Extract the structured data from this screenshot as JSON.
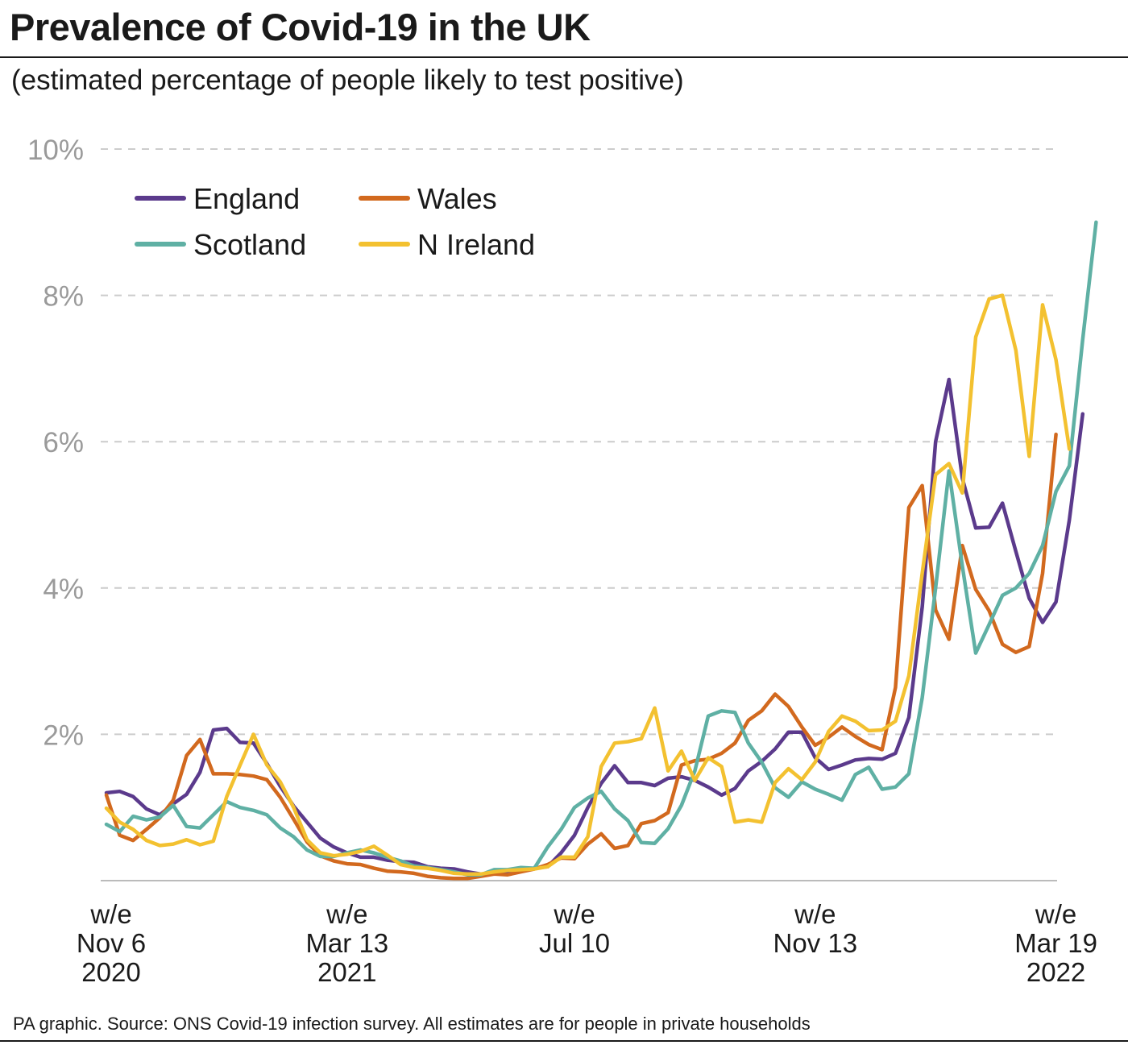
{
  "header": {
    "title": "Prevalence of Covid-19 in the UK",
    "subtitle": "(estimated percentage of people likely to test positive)"
  },
  "footer": {
    "source": "PA graphic. Source: ONS Covid-19 infection survey. All estimates are for people in private households"
  },
  "colors": {
    "england": "#5b3a8c",
    "wales": "#d2691e",
    "scotland": "#5fb0a4",
    "nireland": "#f3c130",
    "grid": "#cccccc",
    "ytick": "#9a9a9a"
  },
  "chart_data": {
    "type": "line",
    "title": "Prevalence of Covid-19 in the UK",
    "subtitle": "(estimated percentage of people likely to test positive)",
    "ylim": [
      0,
      10
    ],
    "y_ticks": [
      {
        "value": 2,
        "label": "2%"
      },
      {
        "value": 4,
        "label": "4%"
      },
      {
        "value": 6,
        "label": "6%"
      },
      {
        "value": 8,
        "label": "8%"
      },
      {
        "value": 10,
        "label": "10%"
      }
    ],
    "x_ticks": [
      {
        "index": 0,
        "lines": [
          "w/e",
          "Nov 6",
          "2020"
        ]
      },
      {
        "index": 18,
        "lines": [
          "w/e",
          "Mar 13",
          "2021"
        ]
      },
      {
        "index": 35,
        "lines": [
          "w/e",
          "Jul 10"
        ]
      },
      {
        "index": 53,
        "lines": [
          "w/e",
          "Nov 13"
        ]
      },
      {
        "index": 71,
        "lines": [
          "w/e",
          "Mar 19",
          "2022"
        ]
      }
    ],
    "grid": true,
    "legend_position": "top-left",
    "series": [
      {
        "name": "England",
        "color_key": "england",
        "values": [
          1.2,
          1.22,
          1.15,
          0.98,
          0.9,
          1.05,
          1.18,
          1.48,
          2.06,
          2.08,
          1.89,
          1.88,
          1.6,
          1.29,
          1.02,
          0.8,
          0.58,
          0.46,
          0.38,
          0.32,
          0.32,
          0.28,
          0.26,
          0.25,
          0.19,
          0.17,
          0.16,
          0.12,
          0.09,
          0.09,
          0.13,
          0.14,
          0.17,
          0.19,
          0.38,
          0.62,
          1.0,
          1.33,
          1.57,
          1.34,
          1.34,
          1.3,
          1.4,
          1.42,
          1.37,
          1.28,
          1.17,
          1.26,
          1.5,
          1.63,
          1.8,
          2.03,
          2.03,
          1.68,
          1.52,
          1.58,
          1.65,
          1.67,
          1.66,
          1.74,
          2.23,
          3.74,
          6.0,
          6.85,
          5.5,
          4.82,
          4.83,
          5.16,
          4.5,
          3.86,
          3.53,
          3.81,
          4.93,
          6.38
        ]
      },
      {
        "name": "Wales",
        "color_key": "wales",
        "values": [
          1.17,
          0.62,
          0.55,
          0.7,
          0.86,
          1.1,
          1.71,
          1.93,
          1.46,
          1.46,
          1.45,
          1.43,
          1.38,
          1.14,
          0.84,
          0.53,
          0.34,
          0.27,
          0.23,
          0.22,
          0.17,
          0.13,
          0.12,
          0.1,
          0.06,
          0.04,
          0.03,
          0.03,
          0.06,
          0.09,
          0.08,
          0.12,
          0.16,
          0.22,
          0.31,
          0.3,
          0.5,
          0.64,
          0.44,
          0.48,
          0.78,
          0.82,
          0.93,
          1.58,
          1.64,
          1.66,
          1.74,
          1.88,
          2.19,
          2.32,
          2.55,
          2.38,
          2.1,
          1.85,
          1.96,
          2.1,
          1.97,
          1.86,
          1.79,
          2.64,
          5.1,
          5.4,
          3.7,
          3.3,
          4.58,
          3.98,
          3.69,
          3.23,
          3.12,
          3.2,
          4.2,
          6.1
        ]
      },
      {
        "name": "Scotland",
        "color_key": "scotland",
        "values": [
          0.77,
          0.67,
          0.88,
          0.83,
          0.87,
          1.03,
          0.74,
          0.72,
          0.9,
          1.08,
          1.0,
          0.96,
          0.9,
          0.72,
          0.6,
          0.42,
          0.33,
          0.33,
          0.38,
          0.42,
          0.38,
          0.32,
          0.27,
          0.2,
          0.18,
          0.15,
          0.12,
          0.08,
          0.08,
          0.15,
          0.15,
          0.18,
          0.17,
          0.46,
          0.7,
          1.0,
          1.13,
          1.22,
          0.98,
          0.82,
          0.52,
          0.51,
          0.71,
          1.03,
          1.5,
          2.25,
          2.32,
          2.3,
          1.88,
          1.62,
          1.27,
          1.14,
          1.35,
          1.25,
          1.18,
          1.1,
          1.45,
          1.55,
          1.25,
          1.28,
          1.46,
          2.5,
          4.0,
          5.6,
          4.3,
          3.11,
          3.5,
          3.9,
          4.0,
          4.2,
          4.58,
          5.32,
          5.67,
          7.4,
          9.0
        ]
      },
      {
        "name": "N Ireland",
        "color_key": "nireland",
        "values": [
          0.99,
          0.8,
          0.7,
          0.55,
          0.48,
          0.5,
          0.56,
          0.49,
          0.54,
          1.15,
          1.58,
          2.0,
          1.58,
          1.35,
          1.0,
          0.56,
          0.38,
          0.34,
          0.36,
          0.4,
          0.47,
          0.35,
          0.22,
          0.18,
          0.17,
          0.14,
          0.1,
          0.09,
          0.09,
          0.12,
          0.14,
          0.15,
          0.16,
          0.19,
          0.32,
          0.32,
          0.6,
          1.56,
          1.88,
          1.9,
          1.94,
          2.36,
          1.5,
          1.77,
          1.37,
          1.68,
          1.56,
          0.8,
          0.83,
          0.8,
          1.34,
          1.53,
          1.38,
          1.62,
          2.04,
          2.25,
          2.18,
          2.05,
          2.06,
          2.18,
          2.8,
          4.2,
          5.55,
          5.7,
          5.3,
          7.43,
          7.95,
          8.0,
          7.25,
          5.8,
          7.87,
          7.12,
          5.9
        ]
      }
    ]
  }
}
